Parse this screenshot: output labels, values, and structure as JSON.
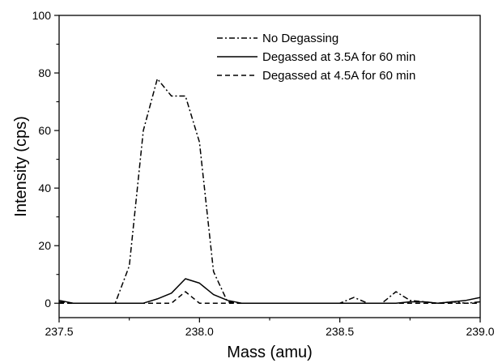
{
  "chart_data": {
    "type": "line",
    "xlabel": "Mass (amu)",
    "ylabel": "Intensity (cps)",
    "xlim": [
      237.5,
      239.0
    ],
    "ylim": [
      -5,
      100
    ],
    "x_ticks": [
      "237.5",
      "238.0",
      "238.5",
      "239.0"
    ],
    "y_ticks": [
      "0",
      "20",
      "40",
      "60",
      "80",
      "100"
    ],
    "legend_position": "top-right",
    "grid": false,
    "series": [
      {
        "name": "No Degassing",
        "style": "dashdot",
        "points": [
          [
            237.5,
            0.5
          ],
          [
            237.55,
            0
          ],
          [
            237.6,
            0
          ],
          [
            237.65,
            0
          ],
          [
            237.7,
            0
          ],
          [
            237.75,
            13
          ],
          [
            237.8,
            60
          ],
          [
            237.85,
            78
          ],
          [
            237.9,
            72
          ],
          [
            237.95,
            72
          ],
          [
            238.0,
            56
          ],
          [
            238.05,
            11
          ],
          [
            238.1,
            0.5
          ],
          [
            238.15,
            0
          ],
          [
            238.2,
            0
          ],
          [
            238.25,
            0
          ],
          [
            238.3,
            0
          ],
          [
            238.35,
            0
          ],
          [
            238.4,
            0
          ],
          [
            238.45,
            0
          ],
          [
            238.5,
            0
          ],
          [
            238.55,
            2
          ],
          [
            238.6,
            0
          ],
          [
            238.65,
            0
          ],
          [
            238.7,
            4
          ],
          [
            238.75,
            1
          ],
          [
            238.8,
            0.5
          ],
          [
            238.85,
            0
          ],
          [
            238.9,
            0.5
          ],
          [
            238.95,
            0
          ],
          [
            239.0,
            0.5
          ]
        ]
      },
      {
        "name": "Degassed at 3.5A for 60 min",
        "style": "solid",
        "points": [
          [
            237.5,
            1
          ],
          [
            237.55,
            0
          ],
          [
            237.6,
            0
          ],
          [
            237.65,
            0
          ],
          [
            237.7,
            0
          ],
          [
            237.75,
            0
          ],
          [
            237.8,
            0
          ],
          [
            237.85,
            1.5
          ],
          [
            237.9,
            3.5
          ],
          [
            237.95,
            8.5
          ],
          [
            238.0,
            7
          ],
          [
            238.05,
            3
          ],
          [
            238.1,
            1
          ],
          [
            238.15,
            0
          ],
          [
            238.2,
            0
          ],
          [
            238.25,
            0
          ],
          [
            238.3,
            0
          ],
          [
            238.35,
            0
          ],
          [
            238.4,
            0
          ],
          [
            238.45,
            0
          ],
          [
            238.5,
            0
          ],
          [
            238.55,
            0
          ],
          [
            238.6,
            0
          ],
          [
            238.65,
            0
          ],
          [
            238.7,
            0
          ],
          [
            238.75,
            0.5
          ],
          [
            238.8,
            0.5
          ],
          [
            238.85,
            0
          ],
          [
            238.9,
            0.5
          ],
          [
            238.95,
            1
          ],
          [
            239.0,
            2
          ]
        ]
      },
      {
        "name": "Degassed at 4.5A for 60 min",
        "style": "dashed",
        "points": [
          [
            237.5,
            0
          ],
          [
            237.55,
            0
          ],
          [
            237.6,
            0
          ],
          [
            237.65,
            0
          ],
          [
            237.7,
            0
          ],
          [
            237.75,
            0
          ],
          [
            237.8,
            0
          ],
          [
            237.85,
            0
          ],
          [
            237.9,
            0
          ],
          [
            237.95,
            4
          ],
          [
            238.0,
            0
          ],
          [
            238.05,
            0
          ],
          [
            238.1,
            0
          ],
          [
            238.15,
            0
          ],
          [
            238.2,
            0
          ],
          [
            238.25,
            0
          ],
          [
            238.3,
            0
          ],
          [
            238.35,
            0
          ],
          [
            238.4,
            0
          ],
          [
            238.45,
            0
          ],
          [
            238.5,
            0
          ],
          [
            238.55,
            0
          ],
          [
            238.6,
            0
          ],
          [
            238.65,
            0
          ],
          [
            238.7,
            0
          ],
          [
            238.75,
            0
          ],
          [
            238.8,
            0
          ],
          [
            238.85,
            0
          ],
          [
            238.9,
            0
          ],
          [
            238.95,
            0
          ],
          [
            239.0,
            0
          ]
        ]
      }
    ]
  }
}
